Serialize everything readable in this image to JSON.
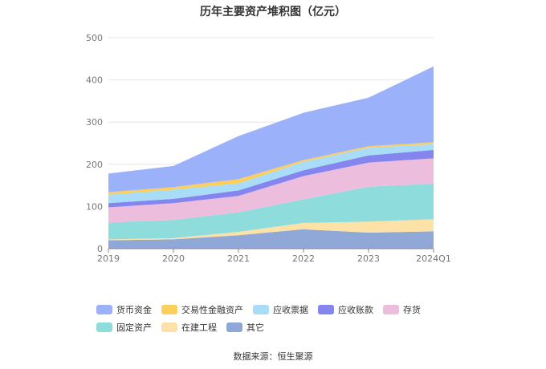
{
  "chart_data": {
    "type": "area",
    "stacked": true,
    "title": "历年主要资产堆积图（亿元）",
    "x": [
      "2019",
      "2020",
      "2021",
      "2022",
      "2023",
      "2024Q1"
    ],
    "ylim": [
      0,
      500
    ],
    "yticks": [
      0,
      100,
      200,
      300,
      400,
      500
    ],
    "grid": true,
    "legend_position": "bottom",
    "series": [
      {
        "name": "其它",
        "color": "#8fa8d8",
        "values": [
          20,
          22,
          32,
          46,
          38,
          41
        ]
      },
      {
        "name": "在建工程",
        "color": "#fde2a8",
        "values": [
          2,
          3,
          8,
          15,
          26,
          29
        ]
      },
      {
        "name": "固定资产",
        "color": "#8fdcdc",
        "values": [
          40,
          43,
          46,
          56,
          83,
          84
        ]
      },
      {
        "name": "存货",
        "color": "#edbdde",
        "values": [
          36,
          40,
          39,
          55,
          57,
          60
        ]
      },
      {
        "name": "应收账款",
        "color": "#8585f0",
        "values": [
          10,
          10,
          13,
          14,
          17,
          20
        ]
      },
      {
        "name": "应收票据",
        "color": "#a9dcf6",
        "values": [
          20,
          22,
          17,
          20,
          18,
          14
        ]
      },
      {
        "name": "交易性金融资产",
        "color": "#fcce5c",
        "values": [
          6,
          6,
          10,
          4,
          4,
          4
        ]
      },
      {
        "name": "货币资金",
        "color": "#9bb2fb",
        "values": [
          44,
          50,
          102,
          112,
          115,
          180
        ]
      }
    ],
    "legend_order": [
      "货币资金",
      "交易性金融资产",
      "应收票据",
      "应收账款",
      "存货",
      "固定资产",
      "在建工程",
      "其它"
    ]
  },
  "source_text": "数据来源：恒生聚源"
}
